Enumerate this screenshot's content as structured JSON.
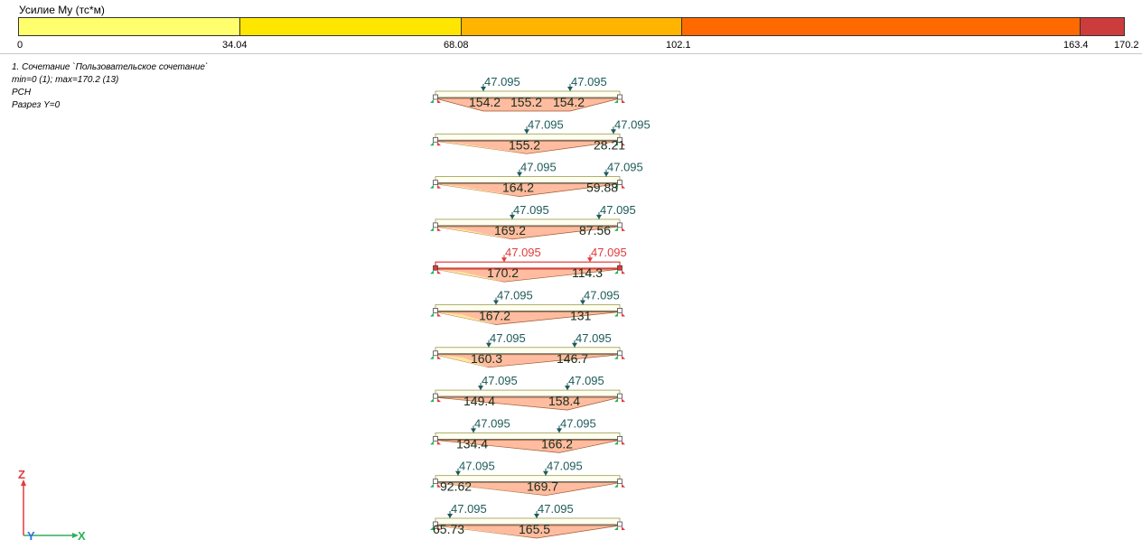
{
  "legend": {
    "title": "Усилие My (тс*м)",
    "ticks": [
      "0",
      "34.04",
      "68.08",
      "102.1",
      "163.4",
      "170.2"
    ],
    "bands": [
      {
        "color": "#FFFF6E",
        "from": 0,
        "to": 34.04
      },
      {
        "color": "#FFE600",
        "from": 34.04,
        "to": 68.08
      },
      {
        "color": "#FFB400",
        "from": 68.08,
        "to": 102.1
      },
      {
        "color": "#FF6A00",
        "from": 102.1,
        "to": 163.4
      },
      {
        "color": "#CC3C3C",
        "from": 163.4,
        "to": 170.2
      }
    ]
  },
  "info": {
    "combination": "1. Сочетание `Пользовательское сочетание`",
    "minmax": "min=0 (1); max=170.2 (13)",
    "type": "РСН",
    "section": "Разрез Y=0"
  },
  "colors": {
    "load": "#1E5A5A",
    "load_highlight": "#E23B3B",
    "diagram_low": "#FFE6A0",
    "diagram_high": "#FFBCA0",
    "beam": "#D8D890",
    "support": "#2FB05A",
    "support_red": "#E23B3B"
  },
  "beams": [
    {
      "load_left": "47.095",
      "load_right": "47.095",
      "labels": [
        "154.2",
        "155.2",
        "154.2"
      ],
      "highlight": false
    },
    {
      "load_left": "47.095",
      "load_right": "47.095",
      "labels": [
        "155.2",
        "28.21"
      ],
      "highlight": false
    },
    {
      "load_left": "47.095",
      "load_right": "47.095",
      "labels": [
        "164.2",
        "59.88"
      ],
      "highlight": false
    },
    {
      "load_left": "47.095",
      "load_right": "47.095",
      "labels": [
        "169.2",
        "87.56"
      ],
      "highlight": false
    },
    {
      "load_left": "47.095",
      "load_right": "47.095",
      "labels": [
        "170.2",
        "114.3"
      ],
      "highlight": true
    },
    {
      "load_left": "47.095",
      "load_right": "47.095",
      "labels": [
        "167.2",
        "131"
      ],
      "highlight": false
    },
    {
      "load_left": "47.095",
      "load_right": "47.095",
      "labels": [
        "160.3",
        "146.7"
      ],
      "highlight": false
    },
    {
      "load_left": "47.095",
      "load_right": "47.095",
      "labels": [
        "149.4",
        "158.4"
      ],
      "highlight": false
    },
    {
      "load_left": "47.095",
      "load_right": "47.095",
      "labels": [
        "134.4",
        "166.2"
      ],
      "highlight": false
    },
    {
      "load_left": "47.095",
      "load_right": "47.095",
      "labels": [
        "92.62",
        "169.7"
      ],
      "highlight": false
    },
    {
      "load_left": "47.095",
      "load_right": "47.095",
      "labels": [
        "65.73",
        "165.5"
      ],
      "highlight": false
    }
  ],
  "axes": {
    "z": "Z",
    "y": "Y",
    "x": "X"
  }
}
